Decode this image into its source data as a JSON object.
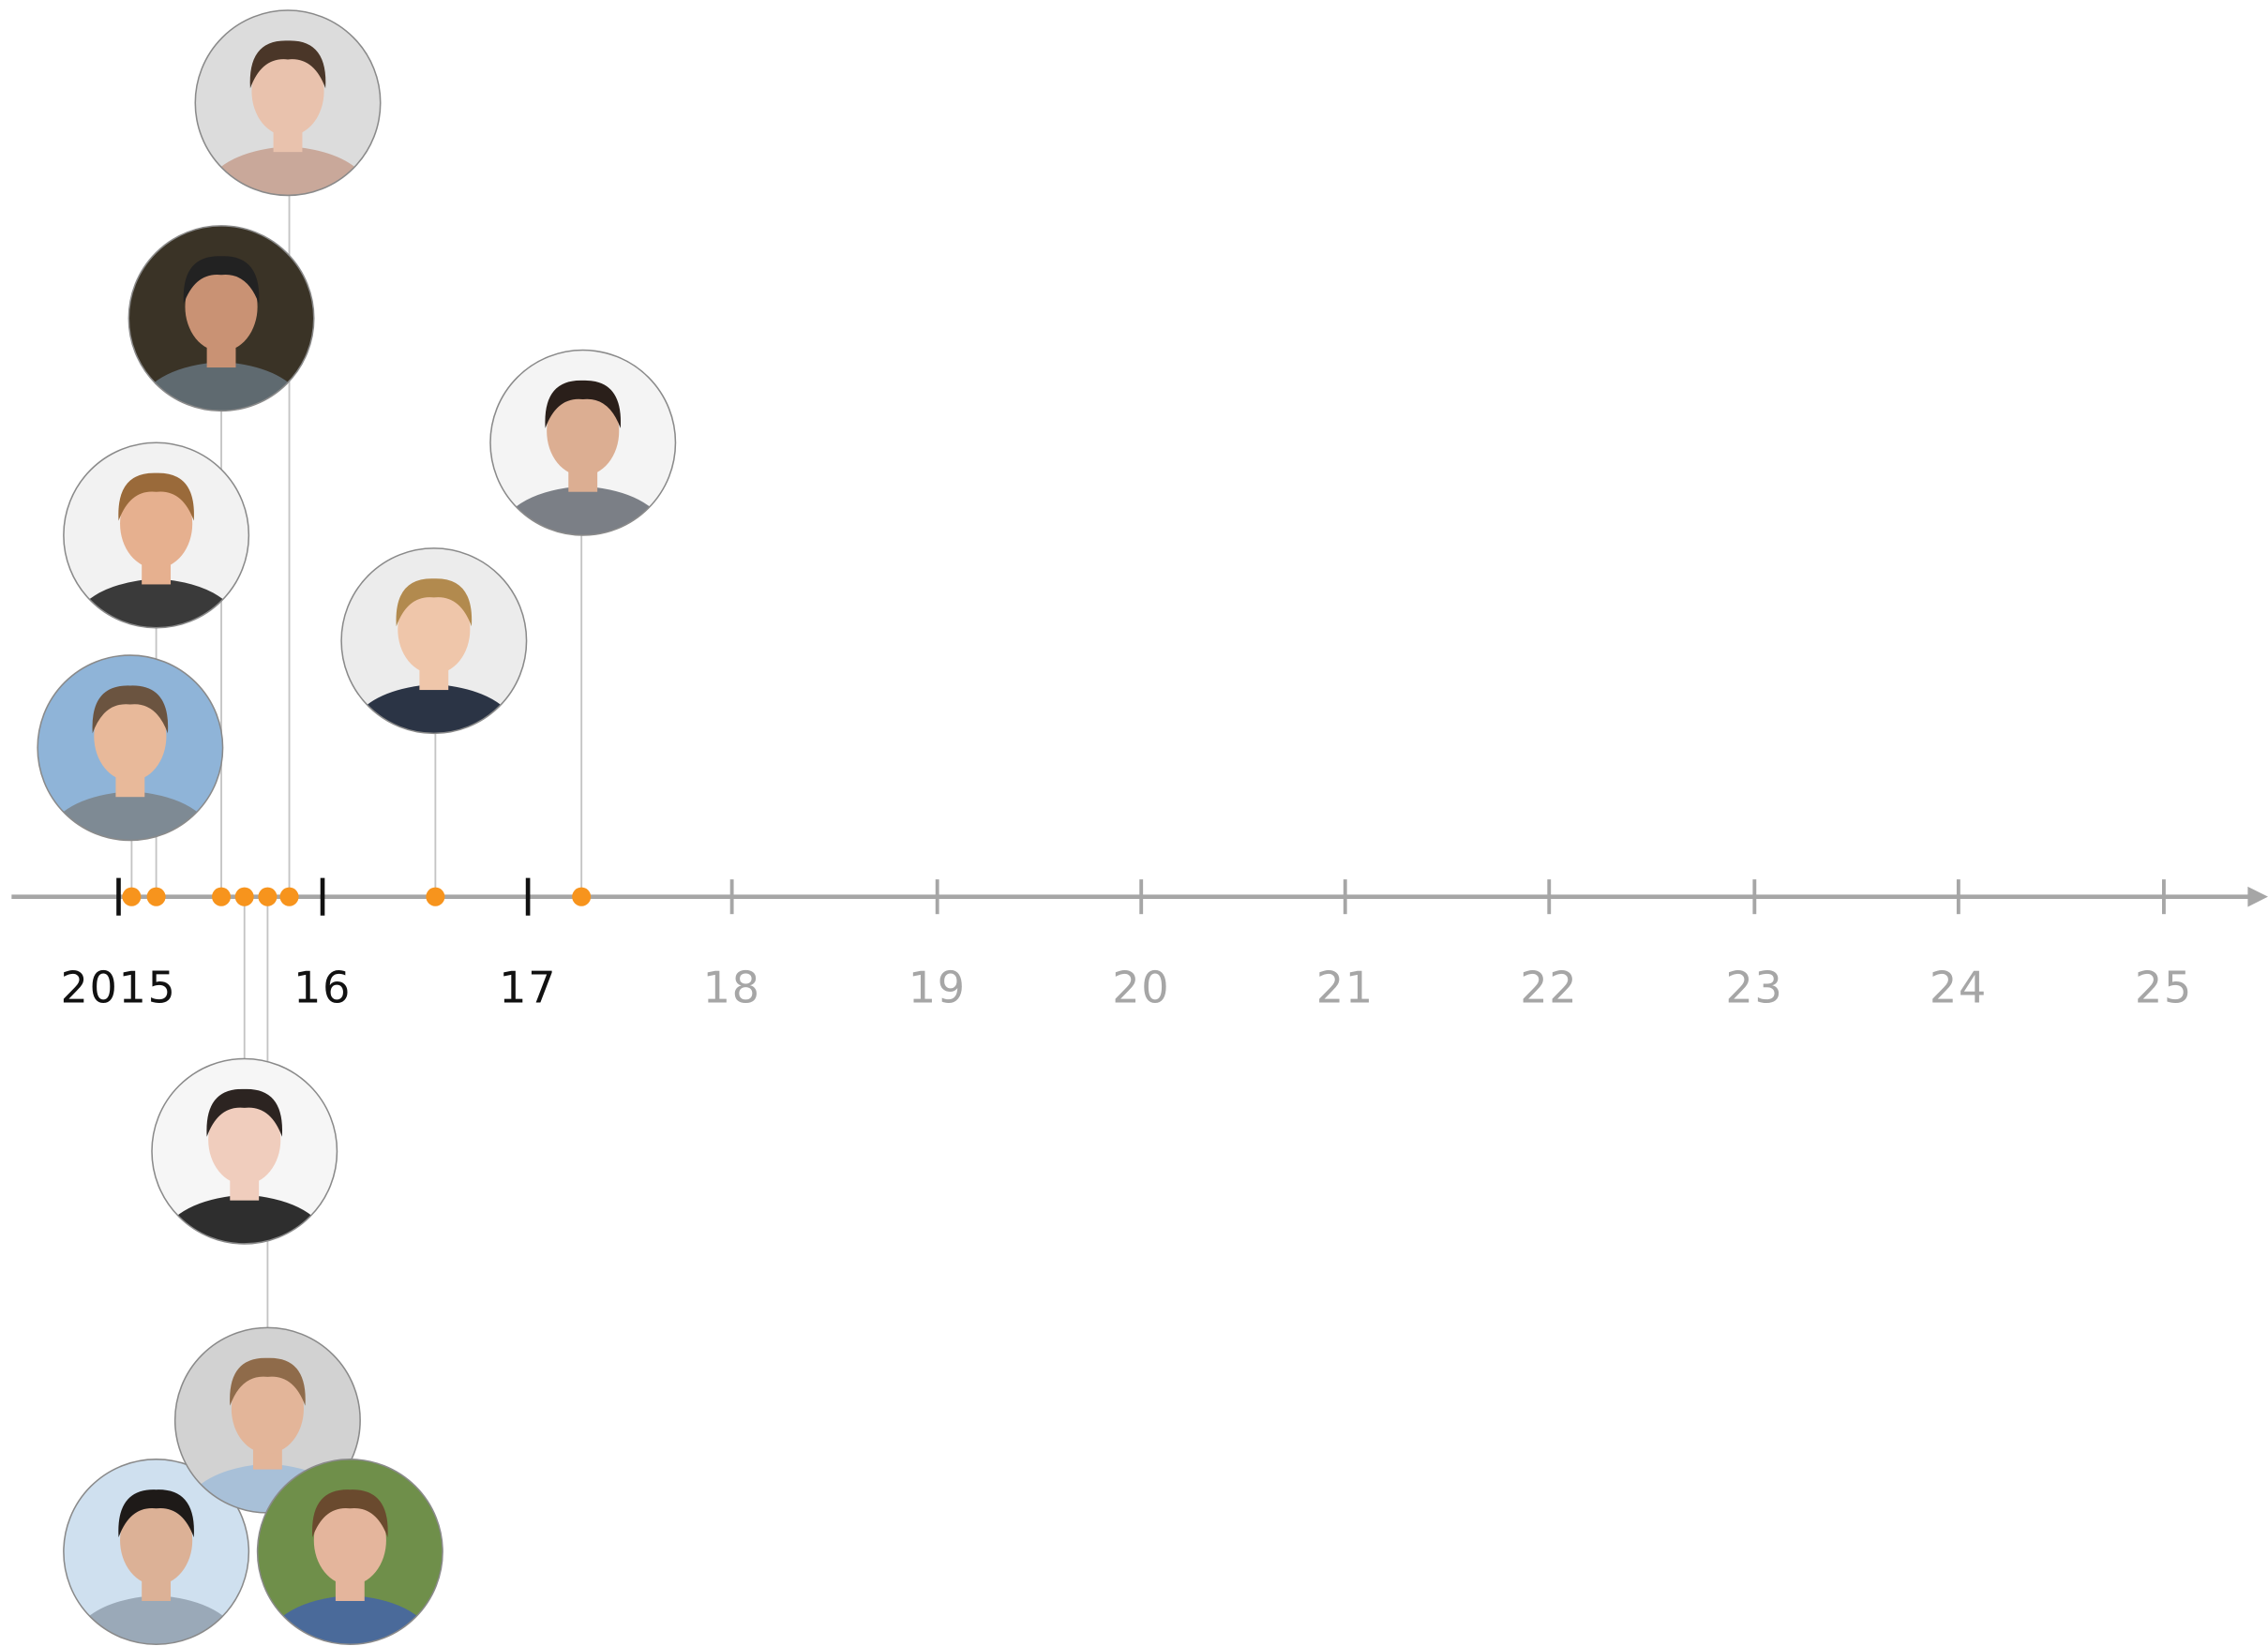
{
  "axis": {
    "labels": [
      "2015",
      "16",
      "17",
      "18",
      "19",
      "20",
      "21",
      "22",
      "23",
      "24",
      "25"
    ]
  }
}
